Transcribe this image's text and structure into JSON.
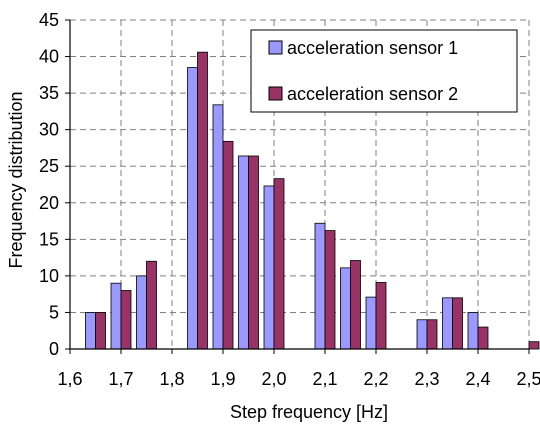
{
  "chart_data": {
    "type": "bar",
    "title": "",
    "xlabel": "Step frequency [Hz]",
    "ylabel": "Frequency distribution",
    "xlim": [
      1.6,
      2.5
    ],
    "ylim": [
      0,
      45
    ],
    "x_ticks": [
      "1,6",
      "1,7",
      "1,8",
      "1,9",
      "2,0",
      "2,1",
      "2,2",
      "2,3",
      "2,4",
      "2,5"
    ],
    "y_ticks": [
      "0",
      "5",
      "10",
      "15",
      "20",
      "25",
      "30",
      "35",
      "40",
      "45"
    ],
    "x": [
      1.65,
      1.7,
      1.75,
      1.85,
      1.9,
      1.95,
      2.0,
      2.1,
      2.15,
      2.2,
      2.3,
      2.35,
      2.4,
      2.5
    ],
    "series": [
      {
        "name": "acceleration sensor 1",
        "color": "#9999ff",
        "values": [
          5,
          9,
          10,
          38.5,
          33.4,
          26.4,
          22.3,
          17.2,
          11.1,
          7.1,
          4,
          7,
          5,
          0
        ]
      },
      {
        "name": "acceleration sensor 2",
        "color": "#993366",
        "values": [
          5,
          8,
          12,
          40.6,
          28.4,
          26.4,
          23.3,
          16.2,
          12.1,
          9.1,
          4,
          7,
          3,
          1
        ]
      }
    ],
    "grid": true,
    "legend_position": "top-right"
  }
}
